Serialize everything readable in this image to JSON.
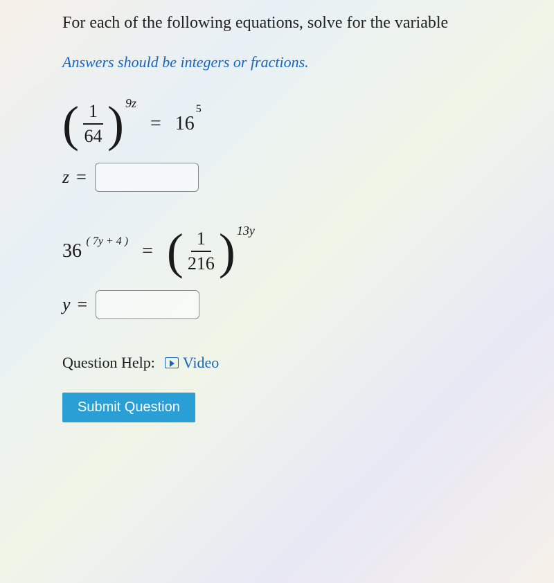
{
  "instruction": "For each of the following equations, solve for the variable",
  "hint": "Answers should be integers or fractions.",
  "eq1": {
    "frac_num": "1",
    "frac_den": "64",
    "outer_exp": "9z",
    "equals": "=",
    "rhs_base": "16",
    "rhs_exp": "5",
    "var_label": "z",
    "value": ""
  },
  "eq2": {
    "lhs_base": "36",
    "lhs_exp": "( 7y + 4 )",
    "equals": "=",
    "frac_num": "1",
    "frac_den": "216",
    "outer_exp": "13y",
    "var_label": "y",
    "value": ""
  },
  "help": {
    "label": "Question Help:",
    "video": "Video"
  },
  "submit": "Submit Question",
  "colors": {
    "text": "#1a1a1a",
    "link": "#1565c0",
    "hint": "#1565c0",
    "button_bg": "#2a9fd6",
    "button_fg": "#ffffff",
    "input_border": "#888888"
  }
}
